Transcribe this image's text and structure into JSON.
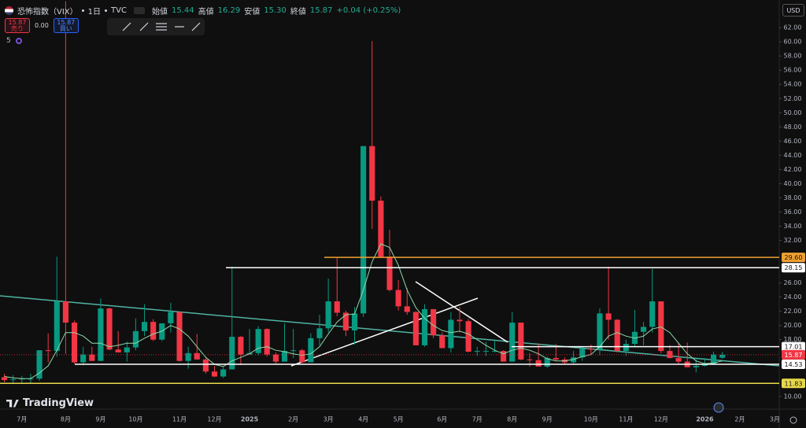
{
  "header": {
    "symbol": "恐怖指数（VIX）",
    "interval": "1日",
    "exchange": "TVC",
    "ohlc": [
      {
        "key": "始値",
        "value": "15.44"
      },
      {
        "key": "高値",
        "value": "16.29"
      },
      {
        "key": "安値",
        "value": "15.30"
      },
      {
        "key": "終値",
        "value": "15.87"
      }
    ],
    "change": "+0.04 (+0.25%)",
    "sell": {
      "price": "15.87",
      "label": "売り"
    },
    "spread": "0.00",
    "buy": {
      "price": "15.87",
      "label": "買い"
    },
    "indicator_count": "5"
  },
  "branding": "TradingView",
  "chart_data": {
    "type": "candlestick",
    "currency": "USD",
    "categories": [
      null,
      null,
      "7月",
      null,
      null,
      null,
      null,
      "8月",
      null,
      null,
      null,
      "9月",
      null,
      null,
      null,
      "10月",
      null,
      null,
      null,
      null,
      "11月",
      null,
      null,
      null,
      "12月",
      null,
      null,
      null,
      "2025",
      null,
      null,
      null,
      null,
      "2月",
      null,
      null,
      null,
      "3月",
      null,
      null,
      null,
      "4月",
      null,
      null,
      null,
      "5月",
      null,
      null,
      null,
      null,
      "6月",
      null,
      null,
      null,
      "7月",
      null,
      null,
      null,
      "8月",
      null,
      null,
      null,
      "9月",
      null,
      null,
      null,
      null,
      "10月",
      null,
      null,
      null,
      "11月",
      null,
      null,
      null,
      "12月",
      null,
      null,
      null,
      null,
      "2026",
      null,
      null,
      null,
      "2月",
      null,
      null,
      null,
      "3月"
    ],
    "open": [
      12.7,
      12.3,
      12.4,
      12.5,
      12.5,
      16.5,
      16.4,
      23.4,
      20.4,
      14.8,
      15.9,
      15.0,
      22.4,
      16.6,
      16.2,
      16.9,
      19.2,
      20.5,
      18.0,
      20.3,
      21.9,
      15.0,
      16.1,
      15.2,
      13.5,
      12.8,
      13.8,
      18.4,
      15.9,
      16.1,
      19.5,
      15.9,
      14.9,
      16.4,
      16.5,
      14.8,
      18.2,
      19.6,
      23.4,
      21.8,
      19.3,
      21.7,
      45.3,
      37.6,
      29.7,
      25.0,
      22.7,
      21.9,
      17.2,
      22.3,
      18.6,
      16.8,
      20.8,
      20.6,
      16.3,
      16.4,
      16.4,
      16.4,
      14.9,
      20.4,
      15.2,
      15.1,
      14.2,
      15.4,
      15.2,
      14.8,
      15.5,
      16.7,
      16.6,
      21.7,
      20.8,
      16.4,
      17.4,
      19.1,
      19.8,
      23.4,
      16.4,
      15.4,
      14.9,
      14.1,
      14.3,
      14.5,
      15.44,
      null,
      null,
      null,
      null,
      null,
      null
    ],
    "high": [
      13.2,
      13.0,
      12.9,
      13.2,
      16.5,
      18.9,
      29.7,
      65.7,
      20.7,
      17.0,
      17.0,
      23.8,
      22.5,
      19.2,
      17.7,
      21.0,
      23.0,
      20.9,
      20.0,
      23.2,
      22.0,
      17.0,
      18.8,
      15.5,
      14.3,
      14.2,
      28.3,
      18.5,
      19.5,
      19.9,
      19.6,
      16.2,
      20.3,
      19.5,
      16.7,
      18.9,
      21.5,
      26.6,
      29.6,
      22.1,
      22.6,
      45.3,
      60.1,
      38.2,
      33.5,
      26.4,
      25.3,
      22.0,
      23.0,
      22.3,
      19.0,
      21.9,
      22.6,
      20.9,
      17.0,
      17.7,
      17.8,
      16.5,
      21.9,
      20.4,
      16.1,
      17.5,
      15.6,
      17.4,
      15.5,
      16.4,
      17.0,
      17.3,
      22.4,
      28.3,
      20.9,
      18.0,
      22.2,
      20.5,
      28.0,
      23.4,
      17.2,
      17.5,
      17.6,
      15.2,
      15.4,
      16.3,
      16.29,
      null,
      null,
      null,
      null,
      null,
      null
    ],
    "low": [
      12.0,
      11.9,
      11.9,
      11.9,
      12.2,
      14.8,
      15.6,
      16.0,
      14.6,
      14.4,
      15.0,
      15.0,
      16.5,
      16.2,
      14.9,
      16.5,
      18.5,
      17.8,
      17.8,
      19.0,
      14.9,
      13.9,
      15.2,
      13.2,
      12.7,
      12.6,
      13.8,
      14.4,
      15.9,
      15.8,
      15.6,
      14.6,
      14.9,
      15.4,
      14.7,
      14.8,
      17.2,
      19.0,
      21.3,
      18.5,
      17.3,
      21.2,
      33.6,
      29.6,
      24.8,
      22.1,
      21.5,
      17.2,
      17.0,
      18.2,
      16.8,
      16.2,
      19.0,
      16.2,
      15.7,
      15.7,
      16.2,
      14.9,
      15.0,
      15.1,
      14.2,
      14.2,
      14.0,
      15.0,
      14.5,
      14.6,
      15.0,
      15.8,
      15.8,
      18.0,
      16.2,
      15.7,
      17.0,
      17.2,
      19.0,
      16.1,
      15.4,
      14.6,
      14.6,
      13.4,
      14.2,
      14.4,
      15.3,
      null,
      null,
      null,
      null,
      null,
      null
    ],
    "close": [
      12.3,
      12.4,
      12.5,
      12.5,
      16.5,
      16.4,
      23.4,
      20.4,
      14.8,
      15.9,
      15.0,
      22.4,
      16.6,
      16.2,
      16.9,
      19.2,
      20.5,
      18.0,
      20.3,
      21.9,
      15.0,
      16.1,
      15.2,
      13.5,
      12.8,
      13.8,
      18.4,
      15.9,
      16.1,
      19.5,
      15.9,
      14.9,
      16.4,
      16.5,
      14.8,
      18.2,
      19.6,
      23.4,
      21.8,
      19.3,
      21.7,
      45.3,
      37.6,
      29.7,
      25.0,
      22.7,
      21.9,
      17.2,
      22.3,
      18.6,
      16.8,
      20.8,
      20.6,
      16.3,
      16.4,
      16.4,
      16.4,
      14.9,
      20.4,
      15.2,
      15.1,
      14.2,
      15.4,
      15.2,
      14.8,
      15.5,
      16.7,
      16.6,
      21.7,
      20.8,
      16.4,
      17.4,
      19.1,
      19.8,
      23.4,
      16.4,
      15.4,
      14.9,
      14.1,
      14.3,
      14.5,
      15.9,
      15.87,
      null,
      null,
      null,
      null,
      null,
      null
    ],
    "up_color": "#089981",
    "down_color": "#f23645",
    "moving_average": {
      "color": "#8fd9a8",
      "values": [
        12.8,
        12.6,
        12.5,
        12.5,
        13.3,
        14.3,
        16.5,
        19.0,
        19.0,
        18.5,
        17.5,
        17.5,
        17.0,
        17.2,
        17.5,
        17.5,
        18.2,
        18.8,
        19.2,
        20.0,
        19.5,
        18.5,
        17.0,
        15.5,
        14.5,
        14.2,
        15.0,
        15.5,
        16.0,
        16.8,
        17.0,
        16.5,
        16.3,
        16.0,
        15.8,
        16.0,
        17.0,
        18.8,
        20.5,
        21.5,
        21.6,
        25.0,
        29.0,
        31.5,
        31.0,
        28.5,
        25.0,
        22.5,
        21.0,
        20.0,
        19.3,
        19.0,
        19.2,
        18.8,
        18.0,
        17.2,
        16.5,
        16.0,
        16.5,
        16.8,
        16.5,
        16.0,
        15.3,
        15.0,
        15.0,
        15.2,
        15.6,
        15.9,
        17.0,
        18.5,
        19.0,
        18.5,
        18.2,
        18.5,
        19.5,
        19.8,
        19.0,
        17.5,
        16.0,
        15.0,
        14.6,
        14.7,
        15.0,
        null,
        null,
        null,
        null,
        null,
        null
      ]
    },
    "ylim": [
      8.2,
      65.9
    ],
    "yticks": [
      {
        "value": 10,
        "label": "10.00"
      },
      {
        "value": 18,
        "label": "18.00"
      },
      {
        "value": 20,
        "label": "20.00"
      },
      {
        "value": 22,
        "label": "22.00"
      },
      {
        "value": 24,
        "label": "24.00"
      },
      {
        "value": 26,
        "label": "26.00"
      },
      {
        "value": 32,
        "label": "32.00"
      },
      {
        "value": 34,
        "label": "34.00"
      },
      {
        "value": 36,
        "label": "36.00"
      },
      {
        "value": 38,
        "label": "38.00"
      },
      {
        "value": 40,
        "label": "40.00"
      },
      {
        "value": 42,
        "label": "42.00"
      },
      {
        "value": 44,
        "label": "44.00"
      },
      {
        "value": 46,
        "label": "46.00"
      },
      {
        "value": 48,
        "label": "48.00"
      },
      {
        "value": 50,
        "label": "50.00"
      },
      {
        "value": 52,
        "label": "52.00"
      },
      {
        "value": 54,
        "label": "54.00"
      },
      {
        "value": 56,
        "label": "56.00"
      },
      {
        "value": 58,
        "label": "58.00"
      },
      {
        "value": 60,
        "label": "60.00"
      },
      {
        "value": 62,
        "label": "62.00"
      }
    ],
    "price_lines": [
      {
        "value": 29.6,
        "label": "29.60",
        "color": "#f0a030"
      },
      {
        "value": 28.15,
        "label": "28.15",
        "color": "#ffffff"
      },
      {
        "value": 17.01,
        "label": "17.01",
        "color": "#ffffff"
      },
      {
        "value": 15.87,
        "label": "15.87",
        "color": "#f23645"
      },
      {
        "value": 14.53,
        "label": "14.53",
        "color": "#ffffff"
      },
      {
        "value": 11.83,
        "label": "11.83",
        "color": "#e8d84a"
      }
    ]
  }
}
